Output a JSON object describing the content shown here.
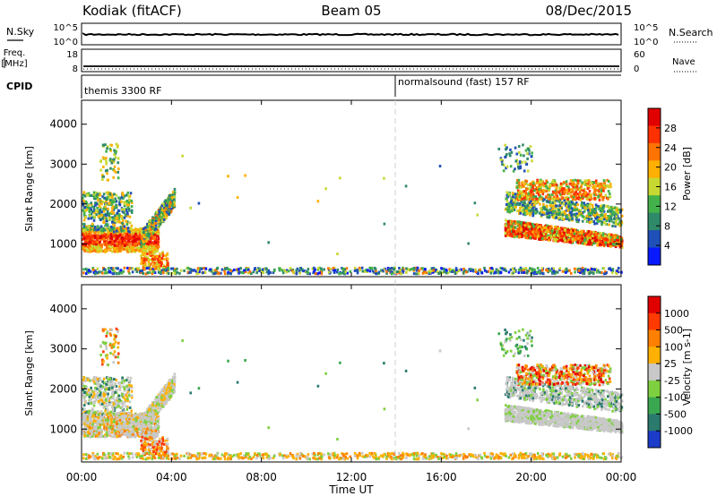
{
  "header": {
    "radar": "Kodiak (fitACF)",
    "beam": "Beam 05",
    "date": "08/Dec/2015"
  },
  "panels": {
    "nsky_label": "N.Sky",
    "nsearch_label": "N.Search",
    "nsky_ticks": [
      "10^5",
      "10^0"
    ],
    "nsearch_ticks": [
      "10^5",
      "10^0"
    ],
    "freq_label_1": "Freq.",
    "freq_label_2": "[MHz]",
    "freq_ticks": [
      "18",
      "8"
    ],
    "nave_label": "Nave",
    "nave_ticks": [
      "60",
      "0"
    ],
    "cpid_label": "CPID",
    "cpid_1": "themis 3300 RF",
    "cpid_2": "normalsound (fast) 157 RF"
  },
  "chart_data": [
    {
      "type": "heatmap",
      "name": "power",
      "ylabel": "Slant Range [km]",
      "xlabel": "",
      "y_ticks": [
        "4000",
        "3000",
        "2000",
        "1000"
      ],
      "x_range": [
        0,
        24
      ],
      "y_range": [
        180,
        4600
      ],
      "colorbar_label": "Power [dB]",
      "colorbar_ticks": [
        "28",
        "24",
        "20",
        "16",
        "12",
        "8",
        "4"
      ],
      "colors": [
        "#0a1aff",
        "#1f4fb8",
        "#2f8a6a",
        "#44b24a",
        "#c8d832",
        "#ffb000",
        "#ff7300",
        "#ff3000",
        "#e00000"
      ]
    },
    {
      "type": "heatmap",
      "name": "velocity",
      "ylabel": "Slant Range [km]",
      "xlabel": "Time UT",
      "y_ticks": [
        "4000",
        "3000",
        "2000",
        "1000"
      ],
      "x_ticks": [
        "00:00",
        "04:00",
        "08:00",
        "12:00",
        "16:00",
        "20:00",
        "00:00"
      ],
      "x_range": [
        0,
        24
      ],
      "y_range": [
        180,
        4600
      ],
      "colorbar_label": "Velocity [m s-1]",
      "colorbar_ticks": [
        "1000",
        "500",
        "100",
        "25",
        "-25",
        "-100",
        "-500",
        "-1000"
      ],
      "colors": [
        "#1b3cc8",
        "#2a7a6e",
        "#3aa850",
        "#7fd040",
        "#c8c8c8",
        "#ffb000",
        "#ff8000",
        "#ff3a00",
        "#e00000"
      ]
    }
  ]
}
